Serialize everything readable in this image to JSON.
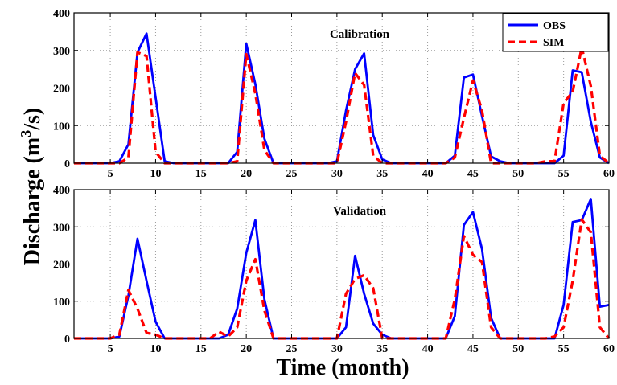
{
  "chart_data": {
    "type": "line",
    "xlabel": "Time (month)",
    "ylabel": "Discharge (m",
    "ylabel_sup": "3",
    "ylabel_tail": "/s)",
    "legend": {
      "placement": "top-right",
      "entries": [
        "OBS",
        "SIM"
      ]
    },
    "colors": {
      "OBS": "#0000ff",
      "SIM": "#ff0000"
    },
    "panels": [
      {
        "title": "Calibration",
        "xlim": [
          1,
          60
        ],
        "ylim": [
          0,
          400
        ],
        "xticks": [
          5,
          10,
          15,
          20,
          25,
          30,
          35,
          40,
          45,
          50,
          55,
          60
        ],
        "yticks": [
          0,
          100,
          200,
          300,
          400
        ],
        "grid": true,
        "show_legend": true,
        "x": [
          1,
          2,
          3,
          4,
          5,
          6,
          7,
          8,
          9,
          10,
          11,
          12,
          13,
          14,
          15,
          16,
          17,
          18,
          19,
          20,
          21,
          22,
          23,
          24,
          25,
          26,
          27,
          28,
          29,
          30,
          31,
          32,
          33,
          34,
          35,
          36,
          37,
          38,
          39,
          40,
          41,
          42,
          43,
          44,
          45,
          46,
          47,
          48,
          49,
          50,
          51,
          52,
          53,
          54,
          55,
          56,
          57,
          58,
          59,
          60
        ],
        "series": [
          {
            "name": "OBS",
            "style": "solid",
            "values": [
              0,
              0,
              0,
              0,
              0,
              5,
              50,
              295,
              345,
              175,
              5,
              0,
              0,
              0,
              0,
              0,
              0,
              0,
              30,
              318,
              210,
              65,
              0,
              0,
              0,
              0,
              0,
              0,
              0,
              5,
              140,
              250,
              292,
              75,
              10,
              0,
              0,
              0,
              0,
              0,
              0,
              0,
              20,
              228,
              236,
              125,
              18,
              5,
              0,
              0,
              0,
              0,
              0,
              0,
              20,
              247,
              242,
              110,
              15,
              0
            ]
          },
          {
            "name": "SIM",
            "style": "dashed",
            "values": [
              0,
              0,
              0,
              0,
              0,
              0,
              15,
              295,
              285,
              30,
              0,
              0,
              0,
              0,
              0,
              0,
              0,
              0,
              5,
              290,
              185,
              35,
              0,
              0,
              0,
              0,
              0,
              0,
              0,
              0,
              110,
              240,
              208,
              20,
              0,
              0,
              0,
              0,
              0,
              0,
              0,
              0,
              15,
              120,
              220,
              140,
              0,
              0,
              0,
              0,
              0,
              0,
              5,
              5,
              160,
              190,
              308,
              205,
              20,
              0
            ]
          }
        ]
      },
      {
        "title": "Validation",
        "xlim": [
          1,
          60
        ],
        "ylim": [
          0,
          400
        ],
        "xticks": [
          5,
          10,
          15,
          20,
          25,
          30,
          35,
          40,
          45,
          50,
          55,
          60
        ],
        "yticks": [
          0,
          100,
          200,
          300,
          400
        ],
        "grid": true,
        "show_legend": false,
        "x": [
          1,
          2,
          3,
          4,
          5,
          6,
          7,
          8,
          9,
          10,
          11,
          12,
          13,
          14,
          15,
          16,
          17,
          18,
          19,
          20,
          21,
          22,
          23,
          24,
          25,
          26,
          27,
          28,
          29,
          30,
          31,
          32,
          33,
          34,
          35,
          36,
          37,
          38,
          39,
          40,
          41,
          42,
          43,
          44,
          45,
          46,
          47,
          48,
          49,
          50,
          51,
          52,
          53,
          54,
          55,
          56,
          57,
          58,
          59,
          60
        ],
        "series": [
          {
            "name": "OBS",
            "style": "solid",
            "values": [
              0,
              0,
              0,
              0,
              0,
              5,
              115,
              268,
              155,
              45,
              0,
              0,
              0,
              0,
              0,
              0,
              0,
              10,
              80,
              230,
              318,
              105,
              0,
              0,
              0,
              0,
              0,
              0,
              0,
              0,
              30,
              222,
              120,
              40,
              10,
              0,
              0,
              0,
              0,
              0,
              0,
              0,
              60,
              305,
              340,
              240,
              55,
              0,
              0,
              0,
              0,
              0,
              0,
              0,
              90,
              313,
              318,
              375,
              85,
              90
            ]
          },
          {
            "name": "SIM",
            "style": "dashed",
            "values": [
              0,
              0,
              0,
              0,
              0,
              10,
              130,
              80,
              15,
              10,
              0,
              0,
              0,
              0,
              0,
              0,
              18,
              5,
              30,
              155,
              213,
              75,
              0,
              0,
              0,
              0,
              0,
              0,
              0,
              0,
              120,
              160,
              170,
              135,
              0,
              0,
              0,
              0,
              0,
              0,
              0,
              0,
              105,
              275,
              225,
              205,
              30,
              0,
              0,
              0,
              0,
              0,
              0,
              5,
              30,
              155,
              320,
              285,
              30,
              0
            ]
          }
        ]
      }
    ]
  }
}
